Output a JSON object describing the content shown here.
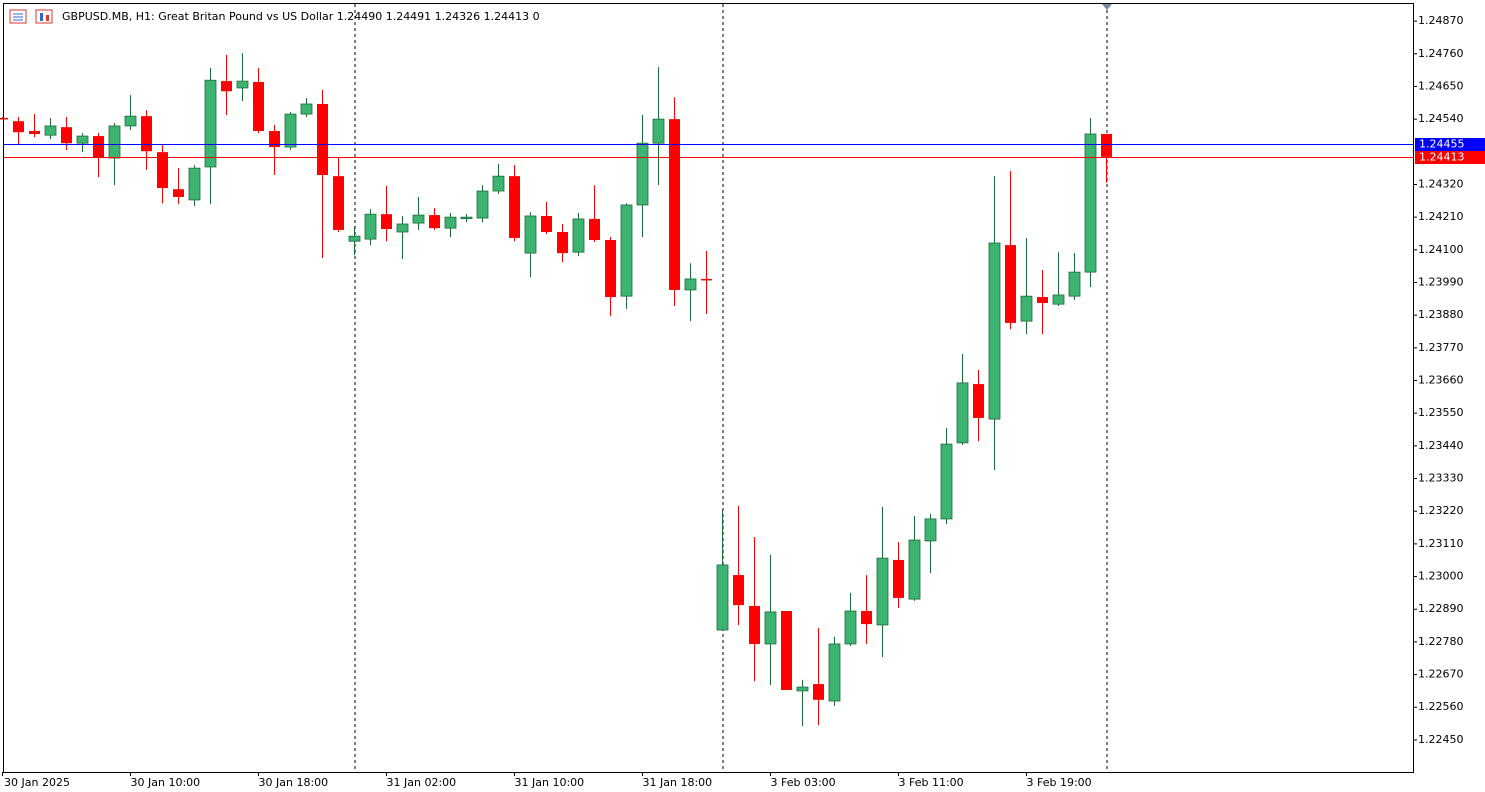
{
  "chart_data": {
    "type": "candlestick",
    "title": "GBPUSD.MB, H1:  Great Britan Pound vs US Dollar  1.24490 1.24491 1.24326 1.24413  0",
    "categories": [
      "30 Jan 2025",
      null,
      null,
      null,
      null,
      null,
      null,
      null,
      "30 Jan 10:00",
      null,
      null,
      null,
      null,
      null,
      null,
      null,
      "30 Jan 18:00",
      null,
      null,
      null,
      null,
      null,
      null,
      null,
      "31 Jan 02:00",
      null,
      null,
      null,
      null,
      null,
      null,
      null,
      "31 Jan 10:00",
      null,
      null,
      null,
      null,
      null,
      null,
      null,
      "31 Jan 18:00",
      null,
      null,
      null,
      null,
      null,
      null,
      null,
      "3 Feb 03:00",
      null,
      null,
      null,
      null,
      null,
      null,
      null,
      "3 Feb 11:00",
      null,
      null,
      null,
      null,
      null,
      null,
      null,
      "3 Feb 19:00",
      null,
      null,
      null,
      null,
      null
    ],
    "open": [
      1.24544,
      1.24533,
      1.245,
      1.24486,
      1.24513,
      1.24459,
      1.24483,
      1.24409,
      1.24517,
      1.2455,
      1.24429,
      1.24304,
      1.24268,
      1.24379,
      1.24668,
      1.24645,
      1.24665,
      1.245,
      1.24446,
      1.24557,
      1.24591,
      1.24348,
      1.24129,
      1.24136,
      1.2422,
      1.2416,
      1.2419,
      1.24217,
      1.24173,
      1.24207,
      1.24207,
      1.24298,
      1.24348,
      1.24089,
      1.24214,
      1.2416,
      1.24092,
      1.24204,
      1.24133,
      1.23944,
      1.24251,
      1.24459,
      1.2454,
      1.23965,
      1.24002,
      1.2282,
      1.23005,
      1.22901,
      1.22773,
      1.22884,
      1.22615,
      1.22638,
      1.22581,
      1.22773,
      1.22884,
      1.22837,
      1.23056,
      1.22924,
      1.2312,
      1.23194,
      1.2345,
      1.23648,
      1.2353,
      1.24116,
      1.2386,
      1.23941,
      1.23917,
      1.23944,
      1.24025,
      1.2449
    ],
    "high": [
      1.24547,
      1.24547,
      1.24557,
      1.24544,
      1.24547,
      1.24493,
      1.24493,
      1.24527,
      1.24621,
      1.2457,
      1.24453,
      1.24375,
      1.24385,
      1.24712,
      1.24756,
      1.24762,
      1.24712,
      1.2452,
      1.24564,
      1.24611,
      1.24638,
      1.24409,
      1.2418,
      1.24237,
      1.24315,
      1.24214,
      1.24278,
      1.24241,
      1.24224,
      1.2422,
      1.24318,
      1.24389,
      1.24385,
      1.24227,
      1.24261,
      1.24187,
      1.24224,
      1.24318,
      1.24143,
      1.24257,
      1.24554,
      1.24715,
      1.24614,
      1.24055,
      1.24096,
      1.23224,
      1.23238,
      1.23133,
      1.23073,
      1.22884,
      1.22652,
      1.22827,
      1.22797,
      1.22945,
      1.23005,
      1.23234,
      1.23116,
      1.23204,
      1.23211,
      1.235,
      1.23749,
      1.23695,
      1.24348,
      1.24365,
      1.2414,
      1.24032,
      1.24092,
      1.24089,
      1.24544,
      1.24491
    ],
    "low": [
      1.2454,
      1.24453,
      1.2448,
      1.24473,
      1.24436,
      1.24429,
      1.24345,
      1.24318,
      1.24503,
      1.24369,
      1.24257,
      1.24254,
      1.24247,
      1.24254,
      1.24554,
      1.24601,
      1.24493,
      1.24352,
      1.24436,
      1.24547,
      1.24072,
      1.2416,
      1.24082,
      1.24116,
      1.24129,
      1.24069,
      1.24167,
      1.24167,
      1.24143,
      1.24193,
      1.24193,
      1.24288,
      1.24129,
      1.24008,
      1.24153,
      1.24059,
      1.24079,
      1.24126,
      1.23877,
      1.23901,
      1.24143,
      1.24318,
      1.23911,
      1.2386,
      1.23884,
      1.2282,
      1.22837,
      1.22648,
      1.22635,
      1.22618,
      1.22497,
      1.225,
      1.22564,
      1.22766,
      1.22773,
      1.22729,
      1.22894,
      1.22918,
      1.23012,
      1.23177,
      1.23443,
      1.23456,
      1.23359,
      1.23833,
      1.23816,
      1.23816,
      1.23911,
      1.23931,
      1.23975,
      1.24326
    ],
    "close": [
      1.2454,
      1.24496,
      1.2449,
      1.24517,
      1.24459,
      1.24483,
      1.24409,
      1.24517,
      1.2455,
      1.24432,
      1.24308,
      1.24278,
      1.24375,
      1.24671,
      1.24634,
      1.24668,
      1.245,
      1.24446,
      1.24557,
      1.24591,
      1.24352,
      1.24167,
      1.24146,
      1.2422,
      1.2417,
      1.24187,
      1.24217,
      1.24173,
      1.2421,
      1.2421,
      1.24298,
      1.24348,
      1.2414,
      1.24214,
      1.2416,
      1.24089,
      1.24204,
      1.24133,
      1.23941,
      1.24251,
      1.24459,
      1.2454,
      1.23965,
      1.24002,
      1.23998,
      1.23039,
      1.22904,
      1.22773,
      1.22881,
      1.22618,
      1.22628,
      1.22585,
      1.22773,
      1.22884,
      1.2284,
      1.23062,
      1.22928,
      1.23123,
      1.23194,
      1.23446,
      1.23652,
      1.23534,
      1.24123,
      1.23854,
      1.23944,
      1.23921,
      1.23948,
      1.24025,
      1.2449,
      1.24413
    ],
    "up_color": "#3cb371",
    "down_color": "#ff0000",
    "ask_line": {
      "value": 1.24455,
      "color": "#0000ff"
    },
    "bid_line": {
      "value": 1.24413,
      "color": "#ff0000"
    },
    "ylim": [
      1.22342,
      1.24931
    ],
    "yticks": [
      {
        "value": 1.2487,
        "label": "1.24870"
      },
      {
        "value": 1.2476,
        "label": "1.24760"
      },
      {
        "value": 1.2465,
        "label": "1.24650"
      },
      {
        "value": 1.2454,
        "label": "1.24540"
      },
      {
        "value": 1.2432,
        "label": "1.24320"
      },
      {
        "value": 1.2421,
        "label": "1.24210"
      },
      {
        "value": 1.241,
        "label": "1.24100"
      },
      {
        "value": 1.2399,
        "label": "1.23990"
      },
      {
        "value": 1.2388,
        "label": "1.23880"
      },
      {
        "value": 1.2377,
        "label": "1.23770"
      },
      {
        "value": 1.2366,
        "label": "1.23660"
      },
      {
        "value": 1.2355,
        "label": "1.23550"
      },
      {
        "value": 1.2344,
        "label": "1.23440"
      },
      {
        "value": 1.2333,
        "label": "1.23330"
      },
      {
        "value": 1.2322,
        "label": "1.23220"
      },
      {
        "value": 1.2311,
        "label": "1.23110"
      },
      {
        "value": 1.23,
        "label": "1.23000"
      },
      {
        "value": 1.2289,
        "label": "1.22890"
      },
      {
        "value": 1.2278,
        "label": "1.22780"
      },
      {
        "value": 1.2267,
        "label": "1.22670"
      },
      {
        "value": 1.2256,
        "label": "1.22560"
      },
      {
        "value": 1.2245,
        "label": "1.22450"
      }
    ]
  }
}
